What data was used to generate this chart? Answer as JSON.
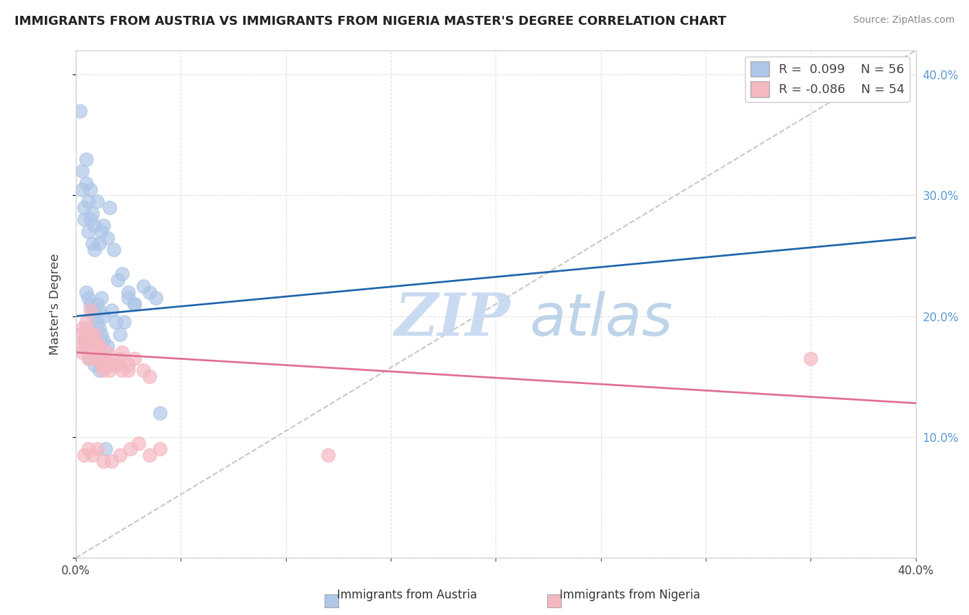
{
  "title": "IMMIGRANTS FROM AUSTRIA VS IMMIGRANTS FROM NIGERIA MASTER'S DEGREE CORRELATION CHART",
  "source": "Source: ZipAtlas.com",
  "ylabel": "Master's Degree",
  "xmin": 0.0,
  "xmax": 0.4,
  "ymin": 0.0,
  "ymax": 0.42,
  "austria_color": "#aec6e8",
  "nigeria_color": "#f4b8c1",
  "austria_line_color": "#2166ac",
  "nigeria_line_color": "#e07090",
  "diag_line_color": "#b8b8b8",
  "background_color": "#ffffff",
  "grid_color": "#e0e0e0",
  "austria_trend_x0": 0.0,
  "austria_trend_y0": 0.2,
  "austria_trend_x1": 0.4,
  "austria_trend_y1": 0.265,
  "nigeria_trend_x0": 0.0,
  "nigeria_trend_y0": 0.17,
  "nigeria_trend_x1": 0.4,
  "nigeria_trend_y1": 0.128,
  "austria_x": [
    0.002,
    0.003,
    0.004,
    0.005,
    0.005,
    0.006,
    0.007,
    0.008,
    0.009,
    0.01,
    0.011,
    0.012,
    0.013,
    0.015,
    0.016,
    0.018,
    0.02,
    0.022,
    0.025,
    0.028,
    0.003,
    0.004,
    0.006,
    0.007,
    0.008,
    0.009,
    0.01,
    0.011,
    0.012,
    0.013,
    0.005,
    0.006,
    0.007,
    0.008,
    0.009,
    0.01,
    0.011,
    0.012,
    0.013,
    0.015,
    0.017,
    0.019,
    0.021,
    0.023,
    0.025,
    0.028,
    0.032,
    0.035,
    0.038,
    0.04,
    0.004,
    0.005,
    0.007,
    0.009,
    0.011,
    0.014
  ],
  "austria_y": [
    0.37,
    0.32,
    0.28,
    0.31,
    0.33,
    0.295,
    0.305,
    0.285,
    0.275,
    0.295,
    0.26,
    0.27,
    0.275,
    0.265,
    0.29,
    0.255,
    0.23,
    0.235,
    0.22,
    0.21,
    0.305,
    0.29,
    0.27,
    0.28,
    0.26,
    0.255,
    0.21,
    0.205,
    0.215,
    0.2,
    0.22,
    0.215,
    0.21,
    0.205,
    0.2,
    0.195,
    0.19,
    0.185,
    0.18,
    0.175,
    0.205,
    0.195,
    0.185,
    0.195,
    0.215,
    0.21,
    0.225,
    0.22,
    0.215,
    0.12,
    0.18,
    0.175,
    0.165,
    0.16,
    0.155,
    0.09
  ],
  "nigeria_x": [
    0.002,
    0.003,
    0.004,
    0.005,
    0.006,
    0.007,
    0.008,
    0.009,
    0.01,
    0.011,
    0.012,
    0.013,
    0.014,
    0.015,
    0.016,
    0.018,
    0.02,
    0.022,
    0.025,
    0.028,
    0.032,
    0.035,
    0.003,
    0.005,
    0.007,
    0.009,
    0.011,
    0.013,
    0.015,
    0.018,
    0.021,
    0.025,
    0.003,
    0.005,
    0.007,
    0.009,
    0.011,
    0.013,
    0.015,
    0.018,
    0.022,
    0.026,
    0.03,
    0.035,
    0.04,
    0.004,
    0.006,
    0.008,
    0.01,
    0.013,
    0.017,
    0.021,
    0.35,
    0.12
  ],
  "nigeria_y": [
    0.185,
    0.175,
    0.18,
    0.195,
    0.165,
    0.18,
    0.17,
    0.165,
    0.175,
    0.165,
    0.16,
    0.155,
    0.165,
    0.17,
    0.155,
    0.16,
    0.16,
    0.17,
    0.16,
    0.165,
    0.155,
    0.15,
    0.19,
    0.185,
    0.185,
    0.18,
    0.175,
    0.165,
    0.16,
    0.16,
    0.165,
    0.155,
    0.17,
    0.19,
    0.205,
    0.185,
    0.175,
    0.165,
    0.16,
    0.16,
    0.155,
    0.09,
    0.095,
    0.085,
    0.09,
    0.085,
    0.09,
    0.085,
    0.09,
    0.08,
    0.08,
    0.085,
    0.165,
    0.085
  ]
}
